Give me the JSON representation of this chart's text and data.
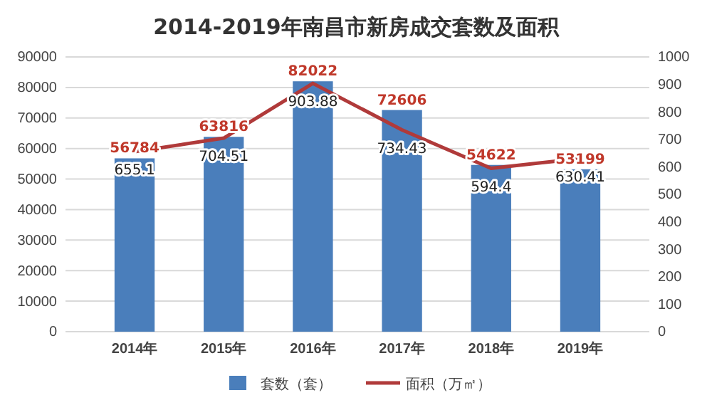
{
  "chart_data": {
    "type": "bar",
    "title": "2014-2019年南昌市新房成交套数及面积",
    "categories": [
      "2014年",
      "2015年",
      "2016年",
      "2017年",
      "2018年",
      "2019年"
    ],
    "series": [
      {
        "name": "套数（套）",
        "color": "#4a7ebb",
        "values": [
          56784,
          63816,
          82022,
          72606,
          54622,
          53199
        ]
      },
      {
        "name": "面积（万㎡）",
        "type": "line",
        "axis": "y2",
        "color": "#b03a3a",
        "values": [
          655.1,
          704.51,
          903.88,
          734.43,
          594.4,
          630.41
        ]
      }
    ],
    "ylim": [
      0,
      90000
    ],
    "yticks": [
      0,
      10000,
      20000,
      30000,
      40000,
      50000,
      60000,
      70000,
      80000,
      90000
    ],
    "y2lim": [
      0,
      1000
    ],
    "y2ticks": [
      0,
      100,
      200,
      300,
      400,
      500,
      600,
      700,
      800,
      900,
      1000
    ],
    "grid": "y",
    "legend": "bottom",
    "data_labels": true,
    "marker": "none",
    "line_style": "solid"
  }
}
